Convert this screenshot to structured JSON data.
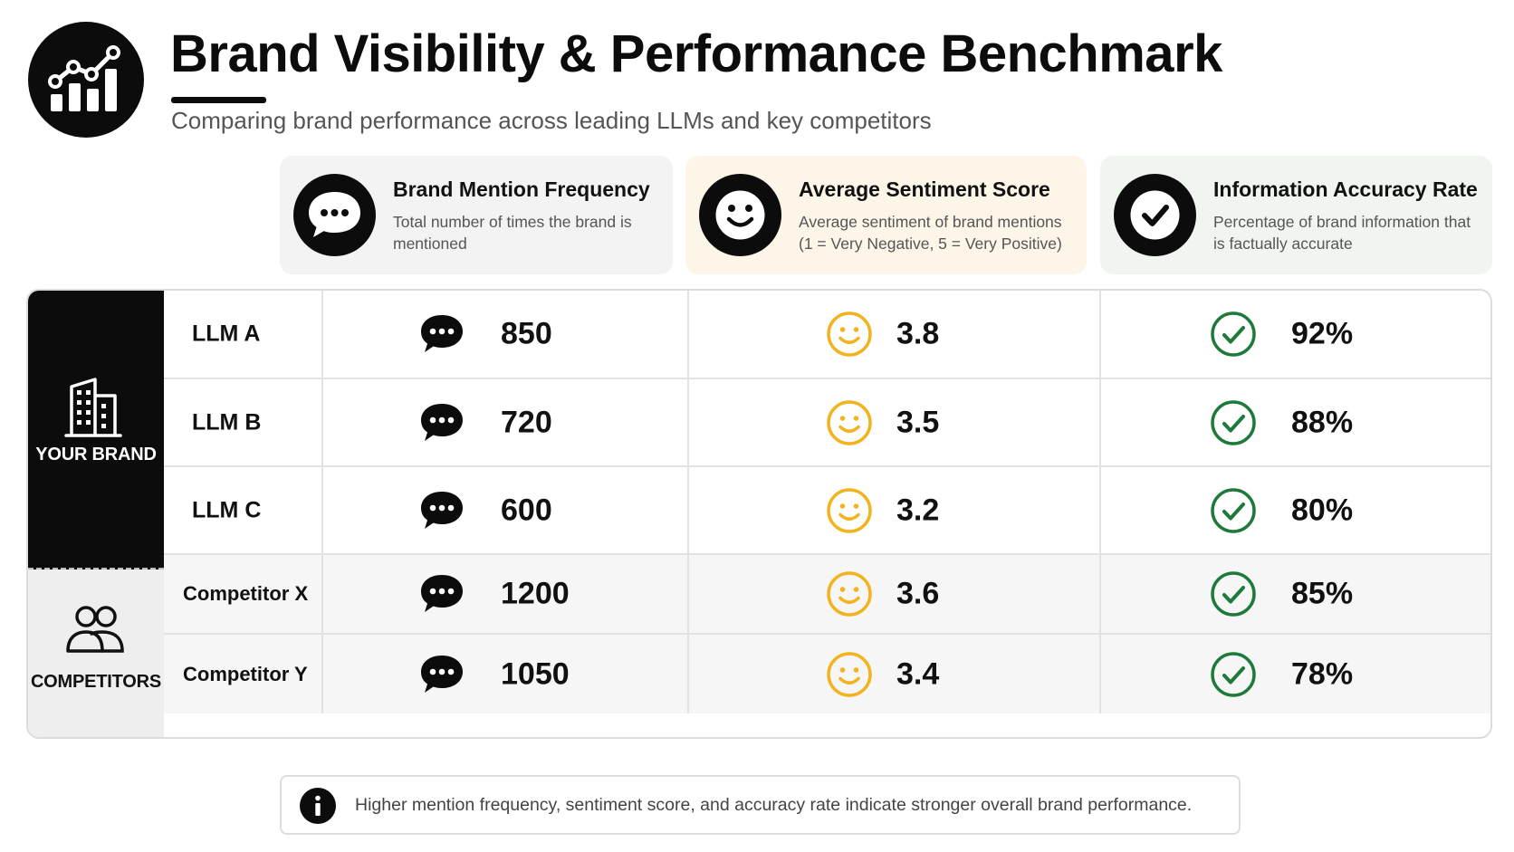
{
  "header": {
    "title": "Brand Visibility & Performance Benchmark",
    "subtitle": "Comparing brand performance across leading LLMs and key competitors",
    "logo_icon": "rising-bar-chart-icon"
  },
  "metrics": [
    {
      "key": "mentions",
      "title": "Brand Mention Frequency",
      "description": "Total number of times the brand is mentioned",
      "icon": "speech-bubble-icon",
      "card_color": "#f3f3f3"
    },
    {
      "key": "sentiment",
      "title": "Average Sentiment Score",
      "description": "Average sentiment of brand mentions (1 = Very Negative, 5 = Very Positive)",
      "icon": "smiley-face-icon",
      "card_color": "#fdf6e8"
    },
    {
      "key": "accuracy",
      "title": "Information Accuracy Rate",
      "description": "Percentage of brand information that is factually accurate",
      "icon": "check-circle-icon",
      "card_color": "#f0f6ef"
    }
  ],
  "groups": [
    {
      "label": "YOUR BRAND",
      "icon": "building-icon"
    },
    {
      "label": "COMPETITORS",
      "icon": "users-icon"
    }
  ],
  "colors": {
    "sentiment_icon": "#f2b31e",
    "accuracy_icon": "#1d7a3a",
    "dark": "#0c0c0c"
  },
  "chart_data": {
    "type": "table",
    "title": "Brand Visibility & Performance Benchmark",
    "columns": [
      "Brand Mention Frequency",
      "Average Sentiment Score",
      "Information Accuracy Rate"
    ],
    "rows": [
      {
        "group": "YOUR BRAND",
        "name": "LLM A",
        "mentions": "850",
        "sentiment": "3.8",
        "accuracy": "92%"
      },
      {
        "group": "YOUR BRAND",
        "name": "LLM B",
        "mentions": "720",
        "sentiment": "3.5",
        "accuracy": "88%"
      },
      {
        "group": "YOUR BRAND",
        "name": "LLM C",
        "mentions": "600",
        "sentiment": "3.2",
        "accuracy": "80%"
      },
      {
        "group": "COMPETITORS",
        "name": "Competitor X",
        "mentions": "1200",
        "sentiment": "3.6",
        "accuracy": "85%"
      },
      {
        "group": "COMPETITORS",
        "name": "Competitor Y",
        "mentions": "1050",
        "sentiment": "3.4",
        "accuracy": "78%"
      }
    ]
  },
  "footnote": {
    "icon": "info-icon",
    "text": "Higher mention frequency, sentiment score, and accuracy rate indicate stronger overall brand performance."
  }
}
